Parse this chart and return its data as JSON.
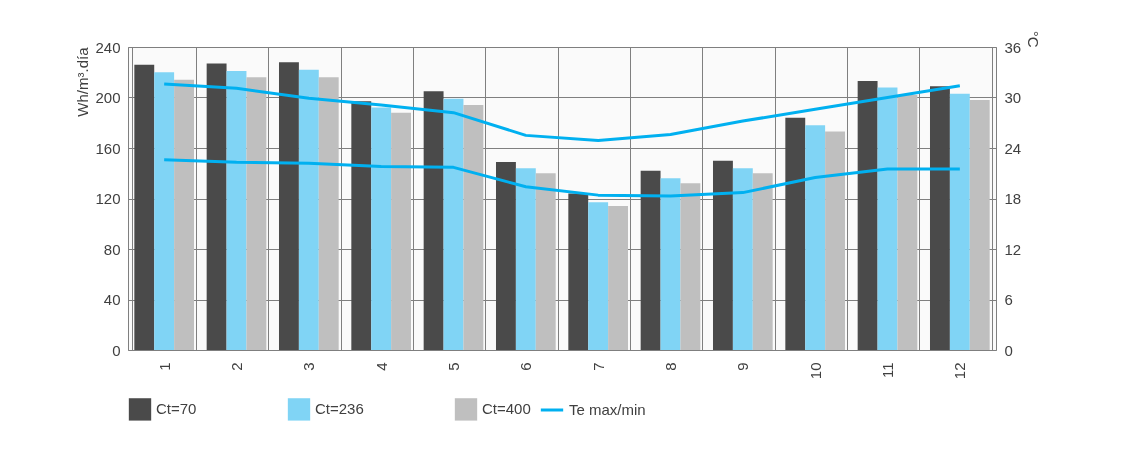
{
  "chart_data": {
    "type": "bar",
    "ylabel": "Wh/m³.día",
    "y2label": "°C",
    "categories": [
      "1",
      "2",
      "3",
      "4",
      "5",
      "6",
      "7",
      "8",
      "9",
      "10",
      "11",
      "12"
    ],
    "series": [
      {
        "name": "Ct=70",
        "color": "#4a4a4a",
        "values": [
          226,
          227,
          228,
          197,
          205,
          149,
          124,
          142,
          150,
          184,
          213,
          209
        ]
      },
      {
        "name": "Ct=236",
        "color": "#80d4f5",
        "values": [
          220,
          221,
          222,
          192,
          199,
          144,
          117,
          136,
          144,
          178,
          208,
          203
        ]
      },
      {
        "name": "Ct=400",
        "color": "#bfbfbf",
        "values": [
          214,
          216,
          216,
          188,
          194,
          140,
          114,
          132,
          140,
          173,
          202,
          198
        ]
      },
      {
        "name": "Te max/min",
        "type": "line",
        "axis": "y2",
        "color": "#00b0f0",
        "values": [
          31.6,
          31.1,
          29.9,
          29.1,
          28.2,
          25.5,
          24.9,
          25.6,
          27.2,
          28.6,
          30.0,
          31.4
        ]
      },
      {
        "type": "line",
        "axis": "y2",
        "color": "#00b0f0",
        "values": [
          22.6,
          22.3,
          22.2,
          21.8,
          21.7,
          19.4,
          18.4,
          18.3,
          18.7,
          20.5,
          21.5,
          21.5
        ]
      }
    ],
    "ylim": [
      0,
      240
    ],
    "yticks": [
      0,
      40,
      80,
      120,
      160,
      200,
      240
    ],
    "y2lim": [
      0,
      36
    ],
    "y2ticks": [
      0,
      6,
      12,
      18,
      24,
      30,
      36
    ],
    "grid": true,
    "legend": "bottom"
  }
}
